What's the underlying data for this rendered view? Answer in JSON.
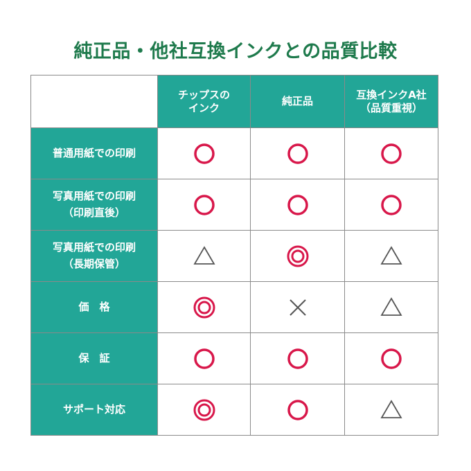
{
  "title": "純正品・他社互換インクとの品質比較",
  "colors": {
    "header_bg": "#22a697",
    "title": "#1e7a4c",
    "good": "#d8174a",
    "neutral": "#555555"
  },
  "columns": [
    "",
    "チップスの\nインク",
    "純正品",
    "互換インクA社\n（品質重視）"
  ],
  "rows": [
    {
      "label": "普通用紙での印刷",
      "values": [
        "circle",
        "circle",
        "circle"
      ]
    },
    {
      "label": "写真用紙での印刷\n（印刷直後）",
      "values": [
        "circle",
        "circle",
        "circle"
      ]
    },
    {
      "label": "写真用紙での印刷\n（長期保管）",
      "values": [
        "triangle",
        "double-circle",
        "triangle"
      ]
    },
    {
      "label": "価　格",
      "values": [
        "double-circle",
        "cross",
        "triangle"
      ]
    },
    {
      "label": "保　証",
      "values": [
        "circle",
        "circle",
        "circle"
      ]
    },
    {
      "label": "サポート対応",
      "values": [
        "double-circle",
        "circle",
        "triangle"
      ]
    }
  ]
}
